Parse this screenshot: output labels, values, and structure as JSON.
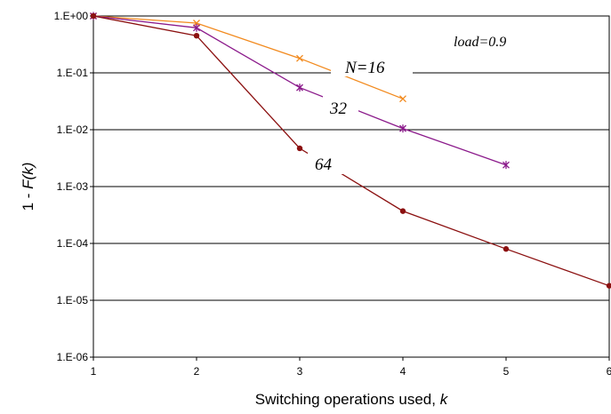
{
  "chart_data": {
    "type": "line",
    "title": "",
    "xlabel_prefix": "Switching operations used, ",
    "xlabel_var": "k",
    "ylabel_prefix": "1 - ",
    "ylabel_var": "F(k)",
    "x_scale": "linear",
    "y_scale": "log",
    "xlim": [
      1,
      6
    ],
    "ylim": [
      1e-06,
      1
    ],
    "grid": "horizontal",
    "x_ticks": [
      "1",
      "2",
      "3",
      "4",
      "5",
      "6"
    ],
    "y_ticks": [
      "1.E+00",
      "1.E-01",
      "1.E-02",
      "1.E-03",
      "1.E-04",
      "1.E-05",
      "1.E-06"
    ],
    "series": [
      {
        "name": "N=16",
        "color": "#f28a1e",
        "marker": "x",
        "x": [
          1,
          2,
          3,
          4
        ],
        "y": [
          1.0,
          0.75,
          0.18,
          0.035
        ]
      },
      {
        "name": "32",
        "color": "#8b1a8b",
        "marker": "asterisk",
        "x": [
          1,
          2,
          3,
          4,
          5
        ],
        "y": [
          1.0,
          0.62,
          0.055,
          0.0105,
          0.0024
        ]
      },
      {
        "name": "64",
        "color": "#8b1010",
        "marker": "circle",
        "x": [
          1,
          2,
          3,
          4,
          5,
          6
        ],
        "y": [
          1.0,
          0.45,
          0.0047,
          0.00037,
          8e-05,
          1.8e-05
        ]
      }
    ],
    "annotations": {
      "load": "load=0.9",
      "n16": "N=16",
      "n32": "32",
      "n64": "64"
    }
  }
}
